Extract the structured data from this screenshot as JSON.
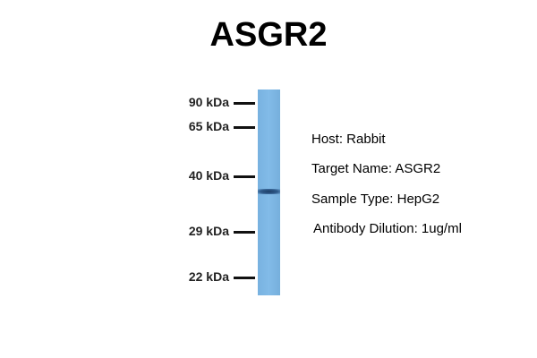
{
  "title": "ASGR2",
  "markers": [
    {
      "label": "90 kDa",
      "kda": 90
    },
    {
      "label": "65 kDa",
      "kda": 65
    },
    {
      "label": "40 kDa",
      "kda": 40
    },
    {
      "label": "29 kDa",
      "kda": 29
    },
    {
      "label": "22 kDa",
      "kda": 22
    }
  ],
  "info": {
    "host": "Host: Rabbit",
    "target": "Target Name: ASGR2",
    "sample": "Sample Type: HepG2",
    "dilution": "Antibody Dilution: 1ug/ml"
  },
  "colors": {
    "lane": "#7cb4e0",
    "band": "#2a4f7c"
  }
}
